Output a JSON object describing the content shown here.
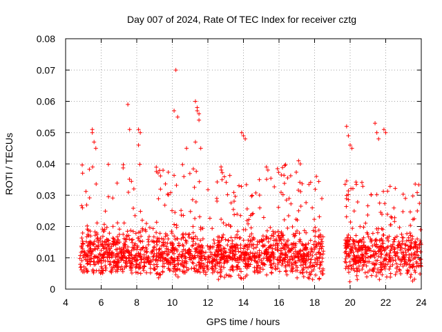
{
  "chart_data": {
    "type": "scatter",
    "title": "Day 007 of 2024, Rate Of TEC Index for receiver cztg",
    "xlabel": "GPS time / hours",
    "ylabel": "ROTI / TECUs",
    "xlim": [
      4,
      24
    ],
    "ylim": [
      0,
      0.08
    ],
    "x_ticks": [
      4,
      6,
      8,
      10,
      12,
      14,
      16,
      18,
      20,
      22,
      24
    ],
    "x_tick_labels": [
      "4",
      "6",
      "8",
      "10",
      "12",
      "14",
      "16",
      "18",
      "20",
      "22",
      "24"
    ],
    "y_ticks": [
      0,
      0.01,
      0.02,
      0.03,
      0.04,
      0.05,
      0.06,
      0.07,
      0.08
    ],
    "y_tick_labels": [
      "0",
      "0.01",
      "0.02",
      "0.03",
      "0.04",
      "0.05",
      "0.06",
      "0.07",
      "0.08"
    ],
    "grid": true,
    "marker": "+",
    "series": [
      {
        "name": "ROTI",
        "color": "#ff0000",
        "x": [
          5.5,
          5.5,
          5.6,
          5.7,
          7.5,
          7.6,
          8.1,
          8.2,
          8.1,
          10.1,
          10.2,
          10.3,
          10.8,
          11.3,
          11.4,
          11.4,
          11.5,
          11.5,
          11.6,
          11.3,
          13.9,
          14.0,
          14.1,
          19.8,
          19.9,
          20.0,
          20.1,
          21.4,
          21.5,
          21.6,
          21.9,
          22.0,
          17.1,
          17.2,
          18.1
        ],
        "values": [
          0.051,
          0.05,
          0.047,
          0.045,
          0.059,
          0.051,
          0.051,
          0.05,
          0.046,
          0.057,
          0.07,
          0.055,
          0.045,
          0.06,
          0.058,
          0.057,
          0.056,
          0.054,
          0.045,
          0.047,
          0.05,
          0.049,
          0.048,
          0.052,
          0.049,
          0.046,
          0.045,
          0.053,
          0.05,
          0.048,
          0.051,
          0.05,
          0.041,
          0.04,
          0.036
        ]
      }
    ],
    "data_coverage": [
      {
        "x_range": [
          4.8,
          9.0
        ],
        "y_range": [
          0.005,
          0.04
        ]
      },
      {
        "x_range": [
          9.0,
          17.0
        ],
        "y_range": [
          0.003,
          0.04
        ]
      },
      {
        "x_range": [
          17.0,
          18.5
        ],
        "y_range": [
          0.003,
          0.035
        ]
      },
      {
        "x_range": [
          19.7,
          24.0
        ],
        "y_range": [
          0.002,
          0.035
        ]
      }
    ],
    "data_gap": [
      18.5,
      19.7
    ]
  }
}
